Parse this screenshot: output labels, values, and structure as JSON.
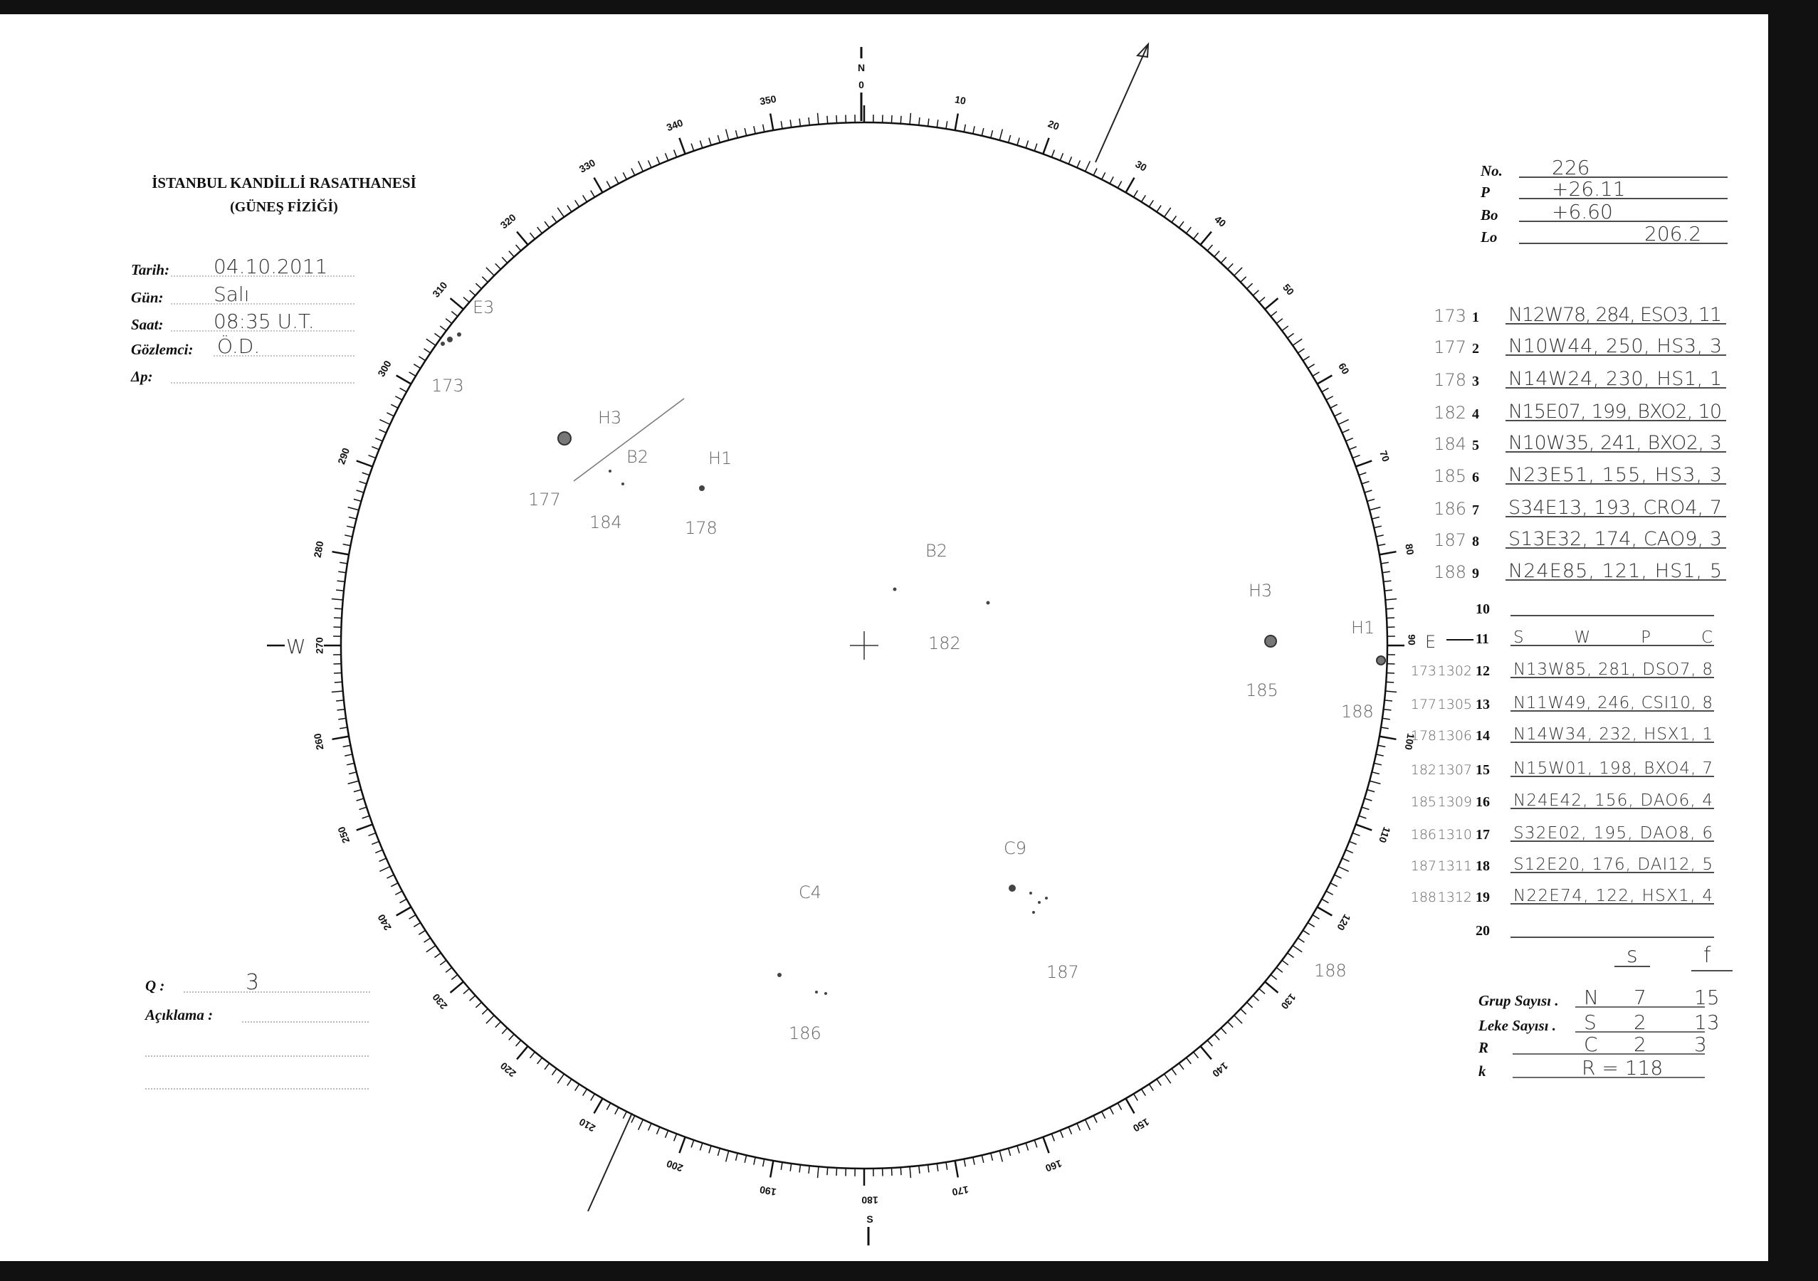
{
  "header": {
    "institute": "İSTANBUL KANDİLLİ RASATHANESİ",
    "department": "(GÜNEŞ FİZİĞİ)"
  },
  "fields": [
    {
      "label": "Tarih:",
      "value": "04.10.2011"
    },
    {
      "label": "Gün:",
      "value": "Salı"
    },
    {
      "label": "Saat:",
      "value": "08:35 U.T."
    },
    {
      "label": "Gözlemci:",
      "value": "Ö.D."
    },
    {
      "label": "Δp:",
      "value": ""
    }
  ],
  "params": [
    {
      "label": "No.",
      "value": "226"
    },
    {
      "label": "P",
      "value": "+26.11"
    },
    {
      "label": "Bo",
      "value": "+6.60"
    },
    {
      "label": "Lo",
      "value": "206.2"
    }
  ],
  "groups": [
    {
      "ref": "173",
      "noaa": "",
      "num": "1",
      "value": "N12W78, 284, ESO3, 11"
    },
    {
      "ref": "177",
      "noaa": "",
      "num": "2",
      "value": "N10W44, 250, HS3, 3"
    },
    {
      "ref": "178",
      "noaa": "",
      "num": "3",
      "value": "N14W24, 230, HS1, 1"
    },
    {
      "ref": "182",
      "noaa": "",
      "num": "4",
      "value": "N15E07, 199, BXO2, 10"
    },
    {
      "ref": "184",
      "noaa": "",
      "num": "5",
      "value": "N10W35, 241, BXO2, 3"
    },
    {
      "ref": "185",
      "noaa": "",
      "num": "6",
      "value": "N23E51, 155, HS3, 3"
    },
    {
      "ref": "186",
      "noaa": "",
      "num": "7",
      "value": "S34E13, 193, CRO4, 7"
    },
    {
      "ref": "187",
      "noaa": "",
      "num": "8",
      "value": "S13E32, 174, CAO9, 3"
    },
    {
      "ref": "188",
      "noaa": "",
      "num": "9",
      "value": "N24E85, 121, HS1, 5"
    },
    {
      "ref": "",
      "noaa": "",
      "num": "10",
      "value": ""
    },
    {
      "ref": "",
      "noaa": "",
      "num": "11",
      "value": "SWPC"
    },
    {
      "ref": "173",
      "noaa": "1302",
      "num": "12",
      "value": "N13W85, 281, DSO7, 8"
    },
    {
      "ref": "177",
      "noaa": "1305",
      "num": "13",
      "value": "N11W49, 246, CSI10, 8"
    },
    {
      "ref": "178",
      "noaa": "1306",
      "num": "14",
      "value": "N14W34, 232, HSX1, 1"
    },
    {
      "ref": "182",
      "noaa": "1307",
      "num": "15",
      "value": "N15W01, 198, BXO4, 7"
    },
    {
      "ref": "185",
      "noaa": "1309",
      "num": "16",
      "value": "N24E42, 156, DAO6, 4"
    },
    {
      "ref": "186",
      "noaa": "1310",
      "num": "17",
      "value": "S32E02, 195, DAO8, 6"
    },
    {
      "ref": "187",
      "noaa": "1311",
      "num": "18",
      "value": "S12E20, 176, DAI12, 5"
    },
    {
      "ref": "188",
      "noaa": "1312",
      "num": "19",
      "value": "N22E74, 122, HSX1, 4"
    },
    {
      "ref": "",
      "noaa": "",
      "num": "20",
      "value": ""
    }
  ],
  "summary": {
    "col_s": "s",
    "col_f": "f",
    "rows": [
      {
        "label": "Grup Sayısı .",
        "key": "N",
        "s": "7",
        "f": "15"
      },
      {
        "label": "Leke Sayısı .",
        "key": "S",
        "s": "2",
        "f": "13"
      },
      {
        "label": "R",
        "key": "C",
        "s": "2",
        "f": "3"
      },
      {
        "label": "k",
        "key": "",
        "s": "R = 118",
        "f": ""
      }
    ]
  },
  "notes": {
    "q_label": "Q :",
    "q_value": "3",
    "comment_label": "Açıklama :",
    "comment_value": ""
  },
  "compass": {
    "north": "N",
    "zero": "0",
    "east": "E",
    "east_deg": "90",
    "west": "W",
    "south": "S"
  },
  "scale_labels": [
    "0",
    "10",
    "20",
    "30",
    "40",
    "50",
    "60",
    "70",
    "80",
    "90",
    "100",
    "110",
    "120",
    "130",
    "140",
    "150",
    "160",
    "170",
    "180",
    "190",
    "200",
    "210",
    "220",
    "230",
    "240",
    "250",
    "260",
    "270",
    "280",
    "290",
    "300",
    "310",
    "320",
    "330",
    "340",
    "350"
  ],
  "sketch_labels": [
    "H3",
    "B2",
    "H1",
    "177",
    "184",
    "178",
    "B2",
    "182",
    "H3",
    "H1",
    "185",
    "188",
    "C9",
    "C4",
    "187",
    "186",
    "188",
    "E3",
    "173"
  ],
  "colors": {
    "paper": "#ffffff",
    "ink": "#111111",
    "pencil": "#555555",
    "border": "#111111"
  }
}
